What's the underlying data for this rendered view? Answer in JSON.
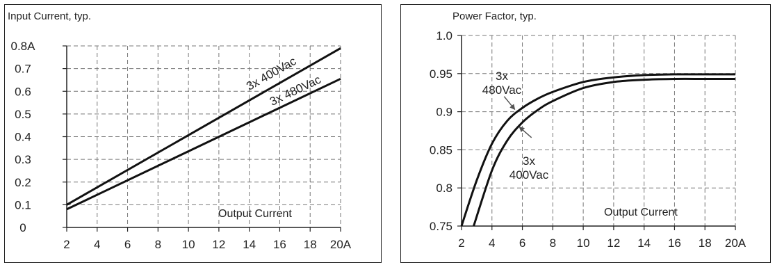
{
  "chart_data": [
    {
      "type": "line",
      "title": "Input Current, typ.",
      "xlabel": "Output Current",
      "ylabel": "",
      "xlim": [
        2,
        20
      ],
      "ylim": [
        0,
        0.8
      ],
      "x_ticks": [
        2,
        4,
        6,
        8,
        10,
        12,
        14,
        16,
        18,
        20
      ],
      "x_tick_labels": [
        "2",
        "4",
        "6",
        "8",
        "10",
        "12",
        "14",
        "16",
        "18",
        "20A"
      ],
      "y_ticks": [
        0,
        0.1,
        0.2,
        0.3,
        0.4,
        0.5,
        0.6,
        0.7,
        0.8
      ],
      "y_tick_labels": [
        "0",
        "0.1",
        "0.2",
        "0.3",
        "0.4",
        "0.5",
        "0.6",
        "0.7",
        "0.8A"
      ],
      "grid": true,
      "series": [
        {
          "name": "3x 400Vac",
          "x": [
            2,
            20
          ],
          "y": [
            0.1,
            0.79
          ]
        },
        {
          "name": "3x 480Vac",
          "x": [
            2,
            20
          ],
          "y": [
            0.08,
            0.655
          ]
        }
      ],
      "annotations": []
    },
    {
      "type": "line",
      "title": "Power Factor, typ.",
      "xlabel": "Output Current",
      "ylabel": "",
      "xlim": [
        2,
        20
      ],
      "ylim": [
        0.75,
        1.0
      ],
      "x_ticks": [
        2,
        4,
        6,
        8,
        10,
        12,
        14,
        16,
        18,
        20
      ],
      "x_tick_labels": [
        "2",
        "4",
        "6",
        "8",
        "10",
        "12",
        "14",
        "16",
        "18",
        "20A"
      ],
      "y_ticks": [
        0.75,
        0.8,
        0.85,
        0.9,
        0.95,
        1.0
      ],
      "y_tick_labels": [
        "0.75",
        "0.8",
        "0.85",
        "0.9",
        "0.95",
        "1.0"
      ],
      "grid": true,
      "series": [
        {
          "name": "3x 480Vac",
          "x": [
            2,
            3,
            4,
            5,
            6,
            7,
            8,
            10,
            12,
            14,
            16,
            18,
            20
          ],
          "y": [
            0.75,
            0.81,
            0.858,
            0.888,
            0.905,
            0.917,
            0.926,
            0.939,
            0.945,
            0.948,
            0.949,
            0.949,
            0.949
          ]
        },
        {
          "name": "3x 400Vac",
          "x": [
            2.8,
            4,
            5,
            6,
            7,
            8,
            10,
            12,
            14,
            16,
            18,
            20
          ],
          "y": [
            0.75,
            0.823,
            0.862,
            0.886,
            0.902,
            0.914,
            0.931,
            0.939,
            0.942,
            0.943,
            0.943,
            0.943
          ]
        }
      ],
      "annotations": [
        {
          "lines": [
            "3x",
            "480Vac"
          ],
          "arrow_x": 5.5,
          "arrow_y": 0.903,
          "tail_x": 4.8,
          "tail_y": 0.92
        },
        {
          "lines": [
            "3x",
            "400Vac"
          ],
          "arrow_x": 5.8,
          "arrow_y": 0.88,
          "tail_x": 6.6,
          "tail_y": 0.866
        }
      ]
    }
  ]
}
